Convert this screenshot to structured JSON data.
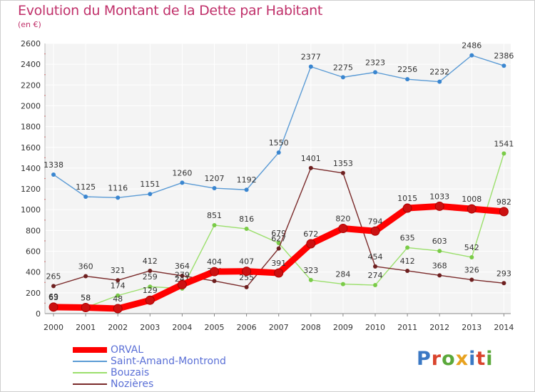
{
  "title": "Evolution du Montant de la Dette par Habitant",
  "unit_label": "(en €)",
  "brand": {
    "text": "Proxiti",
    "letter_colors": [
      "#3a78c4",
      "#d9442d",
      "#5aa83a",
      "#e8a21f",
      "#3a78c4",
      "#d9442d",
      "#5aa83a"
    ]
  },
  "chart_data": {
    "type": "line",
    "title": "Evolution du Montant de la Dette par Habitant",
    "xlabel": "",
    "ylabel": "(en €)",
    "x": [
      "2000",
      "2001",
      "2002",
      "2003",
      "2004",
      "2005",
      "2006",
      "2007",
      "2008",
      "2009",
      "2010",
      "2011",
      "2012",
      "2013",
      "2014"
    ],
    "ylim": [
      0,
      2600
    ],
    "yticks": [
      0,
      200,
      400,
      600,
      800,
      1000,
      1200,
      1400,
      1600,
      1800,
      2000,
      2200,
      2400,
      2600
    ],
    "grid": true,
    "legend_position": "bottom-left",
    "series": [
      {
        "name": "Saint-Amand-Montrond",
        "color": "#5b9bd5",
        "marker": "#3a86d0",
        "labels_visible": true,
        "values": [
          1338,
          1125,
          1116,
          1151,
          1260,
          1207,
          1192,
          1550,
          2377,
          2275,
          2323,
          2256,
          2232,
          2486,
          2386
        ]
      },
      {
        "name": "Bouzais",
        "color": "#9bdf6c",
        "marker": "#7acb48",
        "labels_visible": true,
        "values": [
          69,
          58,
          174,
          259,
          241,
          851,
          816,
          679,
          323,
          284,
          274,
          635,
          603,
          542,
          1541
        ],
        "label_texts": [
          "69",
          "58",
          "174",
          "259",
          "241",
          "851",
          "816",
          "679",
          "323",
          "284",
          "274",
          "635",
          "603",
          "542",
          "1541"
        ]
      },
      {
        "name": "Nozières",
        "color": "#7a2a2a",
        "marker": "#6e2020",
        "labels_visible": true,
        "values": [
          265,
          360,
          321,
          412,
          364,
          314,
          255,
          627,
          1401,
          1353,
          454,
          412,
          368,
          326,
          293
        ],
        "label_texts": [
          "265",
          "360",
          "321",
          "412",
          "364",
          "314",
          "255",
          "627",
          "1401",
          "1353",
          "454",
          "412",
          "368",
          "326",
          "293"
        ]
      },
      {
        "name": "ORVAL",
        "color": "#ff0000",
        "marker": "#cc1111",
        "labels_visible": true,
        "values": [
          63,
          58,
          48,
          129,
          279,
          404,
          407,
          391,
          672,
          820,
          794,
          1015,
          1033,
          1008,
          982
        ],
        "label_texts": [
          "63",
          "58",
          "48",
          "129",
          "279",
          "404",
          "407",
          "391",
          "672",
          "820",
          "794",
          "1015",
          "1033",
          "1008",
          "982"
        ]
      }
    ]
  },
  "legend": [
    {
      "name": "ORVAL",
      "color": "#ff0000",
      "thickness": 8
    },
    {
      "name": "Saint-Amand-Montrond",
      "color": "#5b9bd5",
      "thickness": 2
    },
    {
      "name": "Bouzais",
      "color": "#9bdf6c",
      "thickness": 2
    },
    {
      "name": "Nozières",
      "color": "#7a2a2a",
      "thickness": 2
    }
  ]
}
